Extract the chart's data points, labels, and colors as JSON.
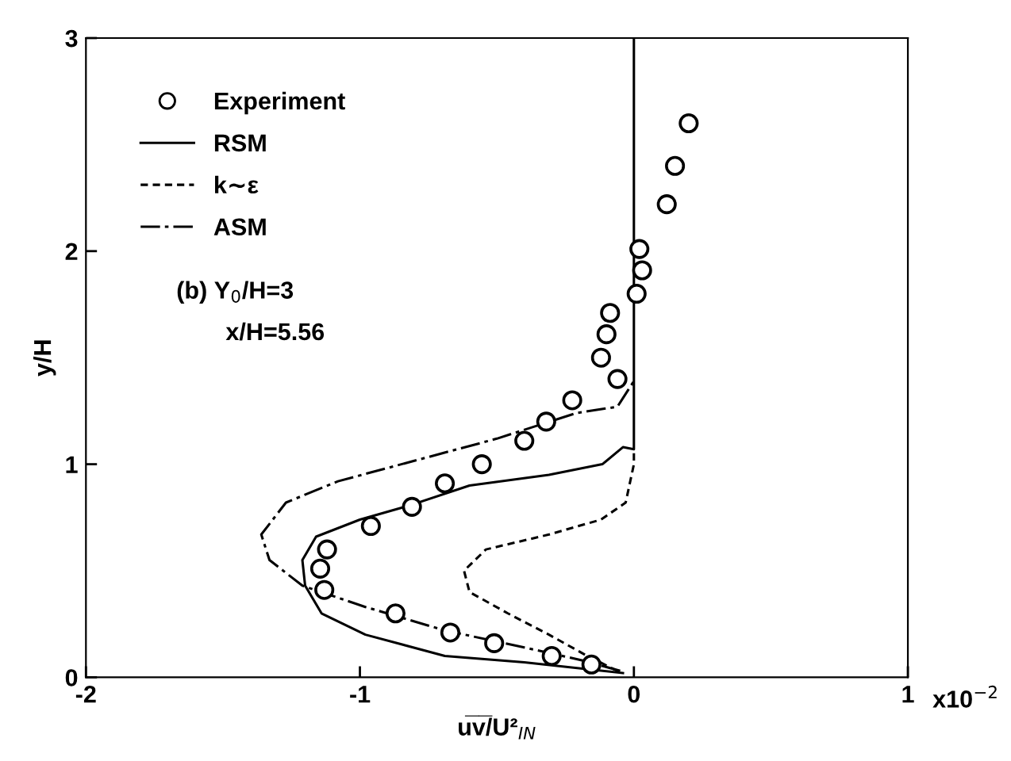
{
  "chart_data": {
    "type": "line",
    "xlabel": "u̅v̅/U²$_{IN}$",
    "ylabel": "y/H",
    "xlim": [
      -2,
      1
    ],
    "xticks": [
      -2,
      -1,
      0,
      1
    ],
    "ylim": [
      0,
      3
    ],
    "yticks": [
      0,
      1,
      2,
      3
    ],
    "grid": false,
    "legend": "top left",
    "annotations": [
      "(b) Y$_{0}$/H=3",
      "x/H=5.56",
      "x10$^{−2}$"
    ],
    "series": [
      {
        "name": "Experiment",
        "type": "scatter",
        "marker": "circle",
        "color": "#000000",
        "x": [
          -0.155,
          -0.3,
          -0.51,
          -0.67,
          -0.87,
          -1.13,
          -1.145,
          -1.12,
          -0.96,
          -0.81,
          -0.69,
          -0.555,
          -0.4,
          -0.32,
          -0.225,
          -0.06,
          -0.12,
          -0.1,
          -0.087,
          0.01,
          0.03,
          0.02,
          0.12,
          0.15,
          0.2
        ],
        "values": [
          0.06,
          0.1,
          0.16,
          0.21,
          0.3,
          0.41,
          0.51,
          0.6,
          0.71,
          0.8,
          0.91,
          1.0,
          1.11,
          1.2,
          1.3,
          1.4,
          1.5,
          1.61,
          1.71,
          1.8,
          1.91,
          2.01,
          2.22,
          2.4,
          2.6
        ]
      },
      {
        "name": "RSM",
        "line_style": "solid",
        "color": "#000000",
        "x": [
          -0.04,
          -0.4,
          -0.69,
          -0.98,
          -1.14,
          -1.2,
          -1.21,
          -1.16,
          -1.0,
          -0.81,
          -0.6,
          -0.31,
          -0.115,
          -0.04,
          0,
          0
        ],
        "values": [
          0.02,
          0.07,
          0.1,
          0.2,
          0.3,
          0.43,
          0.55,
          0.66,
          0.74,
          0.81,
          0.9,
          0.95,
          1.0,
          1.08,
          1.07,
          3
        ]
      },
      {
        "name": "k∼ε",
        "line_style": "dashed",
        "color": "#000000",
        "x": [
          -0.06,
          -0.17,
          -0.31,
          -0.46,
          -0.6,
          -0.62,
          -0.54,
          -0.31,
          -0.12,
          -0.03,
          0,
          0
        ],
        "values": [
          0.03,
          0.1,
          0.2,
          0.3,
          0.4,
          0.5,
          0.6,
          0.67,
          0.74,
          0.82,
          1.0,
          1.07
        ]
      },
      {
        "name": "ASM",
        "line_style": "dashdot",
        "color": "#000000",
        "x": [
          -0.05,
          -0.19,
          -0.4,
          -0.69,
          -0.98,
          -1.21,
          -1.33,
          -1.36,
          -1.27,
          -1.08,
          -0.79,
          -0.5,
          -0.21,
          -0.06,
          0
        ],
        "values": [
          0.03,
          0.08,
          0.14,
          0.22,
          0.33,
          0.43,
          0.55,
          0.67,
          0.82,
          0.92,
          1.02,
          1.12,
          1.24,
          1.27,
          1.39
        ]
      }
    ]
  }
}
